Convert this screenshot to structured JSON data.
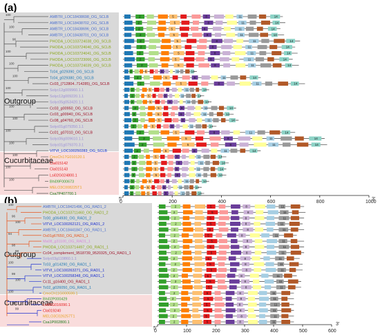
{
  "colors": {
    "outgroup_bg": "#d9d9d9",
    "cucurbit_bg": "#f9dcdc",
    "backbone_a": "#555555",
    "backbone_b_orange": "#e8541c",
    "backbone_b_blue": "#1c2fd0",
    "domain_palette": [
      "#1f78b4",
      "#33a02c",
      "#b2df8a",
      "#ff7f00",
      "#fdbf6f",
      "#e31a1c",
      "#fb9a99",
      "#6a3d9a",
      "#cab2d6",
      "#ffff99",
      "#a6cee3",
      "#999999",
      "#b15928",
      "#8dd3c7",
      "#fccde5"
    ]
  },
  "panel_a": {
    "label": "(a)",
    "group_outgroup": "Outgroup",
    "group_cucurbit": "Cucurbitaceae",
    "genes": [
      {
        "name": "AMBTR_LOC18438698_OG_SCLB",
        "color": "#4a6fd0"
      },
      {
        "name": "AMBTR_LOC18438702_OG_SCLB",
        "color": "#4a6fd0"
      },
      {
        "name": "AMBTR_LOC18438696_OG_SCLB",
        "color": "#4a6fd0"
      },
      {
        "name": "AMBTR_LOC18438701_OG_SCLB",
        "color": "#4a6fd0"
      },
      {
        "name": "PHODA_LOC103724038_OG_SCLB",
        "color": "#8aa61a"
      },
      {
        "name": "PHODA_LOC103724040_OG_SCLB",
        "color": "#8aa61a"
      },
      {
        "name": "PHODA_LOC103724041_OG_SCLB",
        "color": "#8aa61a"
      },
      {
        "name": "PHODA_LOC103723066_OG_SCLB",
        "color": "#8aa61a"
      },
      {
        "name": "PHODA_LOC103724039_OG_SCLB",
        "color": "#8aa61a"
      },
      {
        "name": "Tc04_g029390_OG_SCLB",
        "color": "#1f78b4"
      },
      {
        "name": "Tc04_g029380_OG_SCLB",
        "color": "#1f78b4"
      },
      {
        "name": "Cc03_(712804..714285)_OG_SCLB",
        "color": "#a0142a"
      },
      {
        "name": "Solyc12g009960.1.1",
        "color": "#9a8cd6"
      },
      {
        "name": "Solyc12g009220.1.1",
        "color": "#9a8cd6"
      },
      {
        "name": "Solyc05g053420.1.1",
        "color": "#9a8cd6"
      },
      {
        "name": "Cc03_g00950_OG_SCLB",
        "color": "#a0142a"
      },
      {
        "name": "Cc03_g00940_OG_SCLB",
        "color": "#a0142a"
      },
      {
        "name": "Cc08_g04760_OG_SCLB",
        "color": "#a0142a"
      },
      {
        "name": "Solyc01g079350.1.1",
        "color": "#9a8cd6"
      },
      {
        "name": "Cc01_g07010_OG_SCLB",
        "color": "#a0142a"
      },
      {
        "name": "Solyc06g009610.1.1",
        "color": "#9a8cd6"
      },
      {
        "name": "Solyc01g079370.3.1",
        "color": "#9a8cd6"
      },
      {
        "name": "VITVI_LOC100250283_OG_SCLB",
        "color": "#1c2fd0"
      },
      {
        "name": "CmoCh17G010120.1",
        "color": "#e8a020"
      },
      {
        "name": "Cla015142",
        "color": "#e31a1c"
      },
      {
        "name": "Cla015143",
        "color": "#e31a1c"
      },
      {
        "name": "Lsi02G024800.1",
        "color": "#e31a1c"
      },
      {
        "name": "Bhi09F000673",
        "color": "#33a02c"
      },
      {
        "name": "MELO3C008225T1",
        "color": "#e8a020"
      },
      {
        "name": "Csa7P407700.1",
        "color": "#1a7a1a"
      }
    ],
    "bootstrap": [
      "100",
      "100",
      "96",
      "100",
      "100",
      "100",
      "100",
      "100",
      "100",
      "100",
      "100",
      "100",
      "100",
      "100"
    ],
    "axis_prefix": "5'",
    "axis_suffix": "3'",
    "ticks": [
      "0",
      "200",
      "400",
      "600",
      "800",
      "1000"
    ],
    "axis_max": 1000
  },
  "panel_b": {
    "label": "(b)",
    "group_outgroup": "Outgroup",
    "group_cucurbit": "Cucurbitaceae",
    "genes": [
      {
        "name": "AMBTR_LOC18421496_OG_RAD1_2",
        "color": "#4a6fd0"
      },
      {
        "name": "PHODA_LOC103711460_OG_RAD1_2",
        "color": "#8aa61a"
      },
      {
        "name": "Tc00_g064930_OG_RAD1_2",
        "color": "#1f78b4"
      },
      {
        "name": "VITVI_LOC100262121_OG_RAD1_2",
        "color": "#1c2fd0"
      },
      {
        "name": "AMBTR_LOC18441847_OG_RAD1_1",
        "color": "#4a6fd0"
      },
      {
        "name": "Os01g67650_OG_RAD1_1",
        "color": "#e8541c"
      },
      {
        "name": "Ma08_g31100_OG_RAD1_1",
        "color": "#d78ad7"
      },
      {
        "name": "PHODA_LOC103714497_OG_RAD1_1",
        "color": "#8aa61a"
      },
      {
        "name": "Cc04_complement_9518739_9520325_OG_RAD1_1",
        "color": "#a0142a"
      },
      {
        "name": "Solyc03g119860.1.1",
        "color": "#9a8cd6"
      },
      {
        "name": "Tc03_g014290_OG_RAD1_1",
        "color": "#1f78b4"
      },
      {
        "name": "VITVI_LOC100263271_OG_RAD1_1",
        "color": "#1c2fd0"
      },
      {
        "name": "VITVI_LOC100258348_OG_RAD1_1",
        "color": "#1c2fd0"
      },
      {
        "name": "Cc11_g16400_OG_RAD1_1",
        "color": "#a0142a"
      },
      {
        "name": "Tc02_g026050_OG_RAD1_1",
        "color": "#1f78b4"
      },
      {
        "name": "CmoCh11G000599.1",
        "color": "#e8a020"
      },
      {
        "name": "Bhi02P000429",
        "color": "#33a02c"
      },
      {
        "name": "Lsi06G016090.1",
        "color": "#e31a1c"
      },
      {
        "name": "Cla019240",
        "color": "#e31a1c"
      },
      {
        "name": "MELO3C026257T1",
        "color": "#e8a020"
      },
      {
        "name": "Csa1P002800.1",
        "color": "#1a7a1a"
      }
    ],
    "bootstrap": [
      "100",
      "96",
      "100",
      "94",
      "98",
      "98",
      "100",
      "99",
      "100",
      "100",
      "100",
      "99"
    ],
    "axis_prefix": "5'",
    "axis_suffix": "3'",
    "ticks": [
      "0",
      "100",
      "200",
      "300",
      "400",
      "500",
      "600"
    ],
    "axis_max": 600
  }
}
